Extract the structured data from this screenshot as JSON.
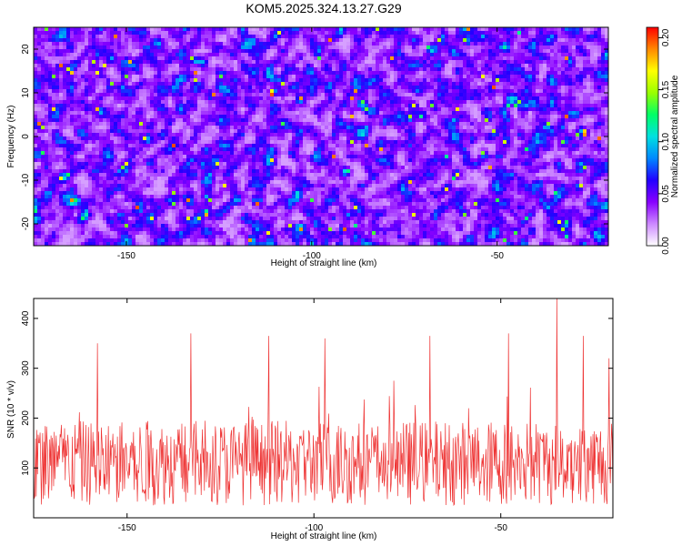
{
  "title": "KOM5.2025.324.13.27.G29",
  "chart_data": [
    {
      "type": "heatmap",
      "xlabel": "Height of straight line (km)",
      "ylabel": "Frequency (Hz)",
      "xlim": [
        -175,
        -20
      ],
      "ylim": [
        -25,
        25
      ],
      "xticks": [
        -150,
        -100,
        -50
      ],
      "yticks": [
        -20,
        -10,
        0,
        10,
        20
      ],
      "colorbar": {
        "label": "Normalized spectral amplitude",
        "range": [
          0,
          0.21
        ],
        "ticks": [
          "0.00",
          "0.05",
          "0.10",
          "0.15",
          "0.20"
        ],
        "colormap": [
          "#ffffff",
          "#cc88ff",
          "#8800ff",
          "#2200ff",
          "#0088ff",
          "#00e0e0",
          "#00ff66",
          "#99ff00",
          "#ffff00",
          "#ff8800",
          "#ff0000"
        ]
      },
      "grid": false
    },
    {
      "type": "line",
      "xlabel": "Height of straight line (km)",
      "ylabel": "SNR (10 * v/v)",
      "xlim": [
        -175,
        -20
      ],
      "ylim": [
        0,
        440
      ],
      "xticks": [
        -150,
        -100,
        -50
      ],
      "yticks": [
        100,
        200,
        300,
        400
      ],
      "series": [
        {
          "color": "#ee3333",
          "baseline_mean": 110,
          "sample_count": 900,
          "peaks": [
            {
              "x": -158,
              "y": 350
            },
            {
              "x": -133,
              "y": 370
            },
            {
              "x": -112,
              "y": 365
            },
            {
              "x": -97,
              "y": 360
            },
            {
              "x": -69,
              "y": 365
            },
            {
              "x": -48,
              "y": 370
            },
            {
              "x": -35,
              "y": 440
            },
            {
              "x": -28,
              "y": 365
            },
            {
              "x": -21,
              "y": 320
            }
          ]
        }
      ],
      "grid": false
    }
  ]
}
